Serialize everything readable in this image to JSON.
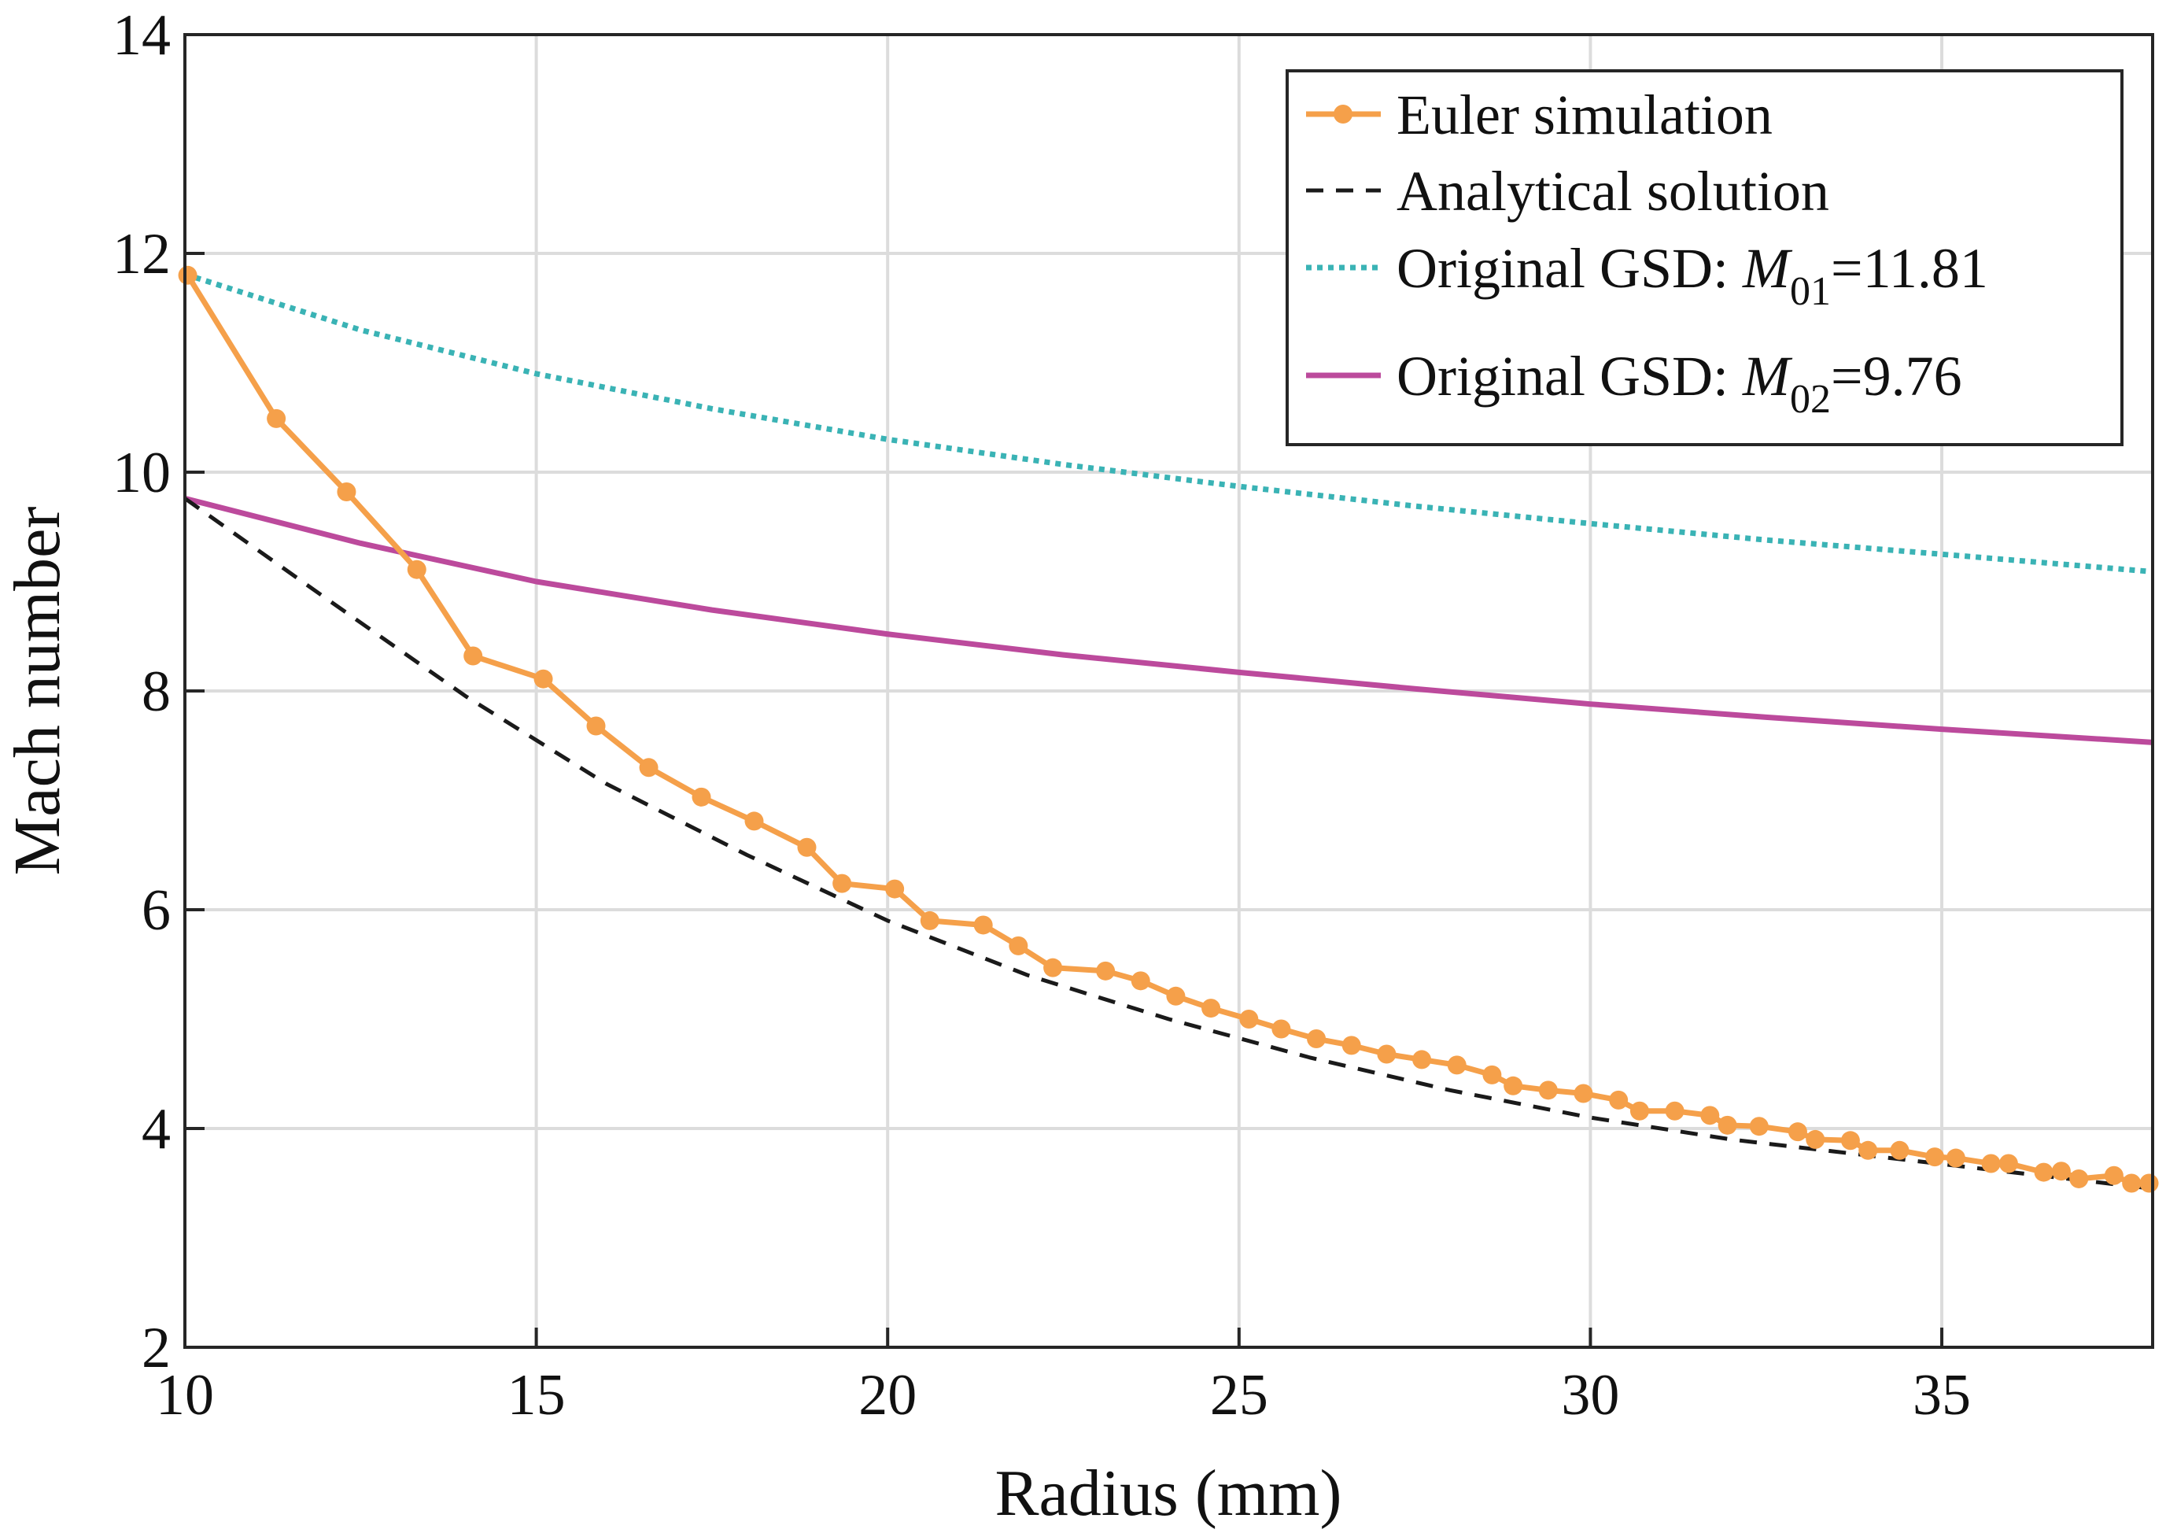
{
  "chart_data": {
    "type": "line",
    "title": "",
    "xlabel": "Radius (mm)",
    "ylabel": "Mach number",
    "xlim": [
      10,
      38
    ],
    "ylim": [
      2,
      14
    ],
    "xticks": [
      10,
      15,
      20,
      25,
      30,
      35
    ],
    "yticks": [
      2,
      4,
      6,
      8,
      10,
      12,
      14
    ],
    "grid": true,
    "legend_position": "top-right",
    "series": [
      {
        "name": "Euler simulation",
        "color": "#F5A04A",
        "style": "solid-markers",
        "x": [
          10.04,
          11.3,
          12.3,
          13.3,
          14.1,
          15.1,
          15.85,
          16.6,
          17.35,
          18.1,
          18.85,
          19.35,
          20.1,
          20.6,
          21.36,
          21.86,
          22.35,
          23.1,
          23.6,
          24.1,
          24.6,
          25.14,
          25.6,
          26.1,
          26.6,
          27.1,
          27.6,
          28.1,
          28.6,
          28.9,
          29.4,
          29.9,
          30.4,
          30.7,
          31.2,
          31.7,
          31.95,
          32.4,
          32.95,
          33.2,
          33.7,
          33.95,
          34.4,
          34.9,
          35.2,
          35.7,
          35.95,
          36.45,
          36.7,
          36.95,
          37.45,
          37.7,
          37.95
        ],
        "y": [
          11.8,
          10.49,
          9.82,
          9.11,
          8.32,
          8.11,
          7.68,
          7.3,
          7.03,
          6.81,
          6.57,
          6.24,
          6.19,
          5.9,
          5.86,
          5.67,
          5.47,
          5.44,
          5.35,
          5.21,
          5.1,
          5.0,
          4.91,
          4.82,
          4.76,
          4.68,
          4.63,
          4.58,
          4.49,
          4.39,
          4.35,
          4.32,
          4.26,
          4.16,
          4.16,
          4.12,
          4.03,
          4.02,
          3.97,
          3.9,
          3.89,
          3.8,
          3.8,
          3.74,
          3.73,
          3.68,
          3.68,
          3.6,
          3.61,
          3.54,
          3.57,
          3.5,
          3.5
        ]
      },
      {
        "name": "Analytical solution",
        "color": "#1A1A1A",
        "style": "dashed",
        "x": [
          10,
          12,
          14,
          16,
          18,
          20,
          22,
          24,
          26,
          28,
          30,
          32,
          34,
          36,
          38
        ],
        "y": [
          9.76,
          8.85,
          7.95,
          7.15,
          6.5,
          5.9,
          5.4,
          5.0,
          4.65,
          4.35,
          4.1,
          3.9,
          3.75,
          3.6,
          3.45
        ]
      },
      {
        "name": "Original GSD: M01=11.81",
        "label_main": "Original GSD: ",
        "label_var": "M",
        "label_sub": "01",
        "label_val": "=11.81",
        "color": "#3AB3B5",
        "style": "dotted",
        "x": [
          10,
          12.5,
          15,
          17.5,
          20,
          22.5,
          25,
          27.5,
          30,
          32.5,
          35,
          38
        ],
        "y": [
          11.81,
          11.3,
          10.9,
          10.58,
          10.3,
          10.07,
          9.87,
          9.69,
          9.53,
          9.38,
          9.25,
          9.09
        ]
      },
      {
        "name": "Original GSD: M02=9.76",
        "label_main": "Original GSD: ",
        "label_var": "M",
        "label_sub": "02",
        "label_val": "=9.76",
        "color": "#BC4A9C",
        "style": "solid",
        "x": [
          10,
          12.5,
          15,
          17.5,
          20,
          22.5,
          25,
          27.5,
          30,
          32.5,
          35,
          38
        ],
        "y": [
          9.76,
          9.35,
          9.0,
          8.74,
          8.52,
          8.33,
          8.17,
          8.02,
          7.88,
          7.76,
          7.65,
          7.53
        ]
      }
    ]
  }
}
